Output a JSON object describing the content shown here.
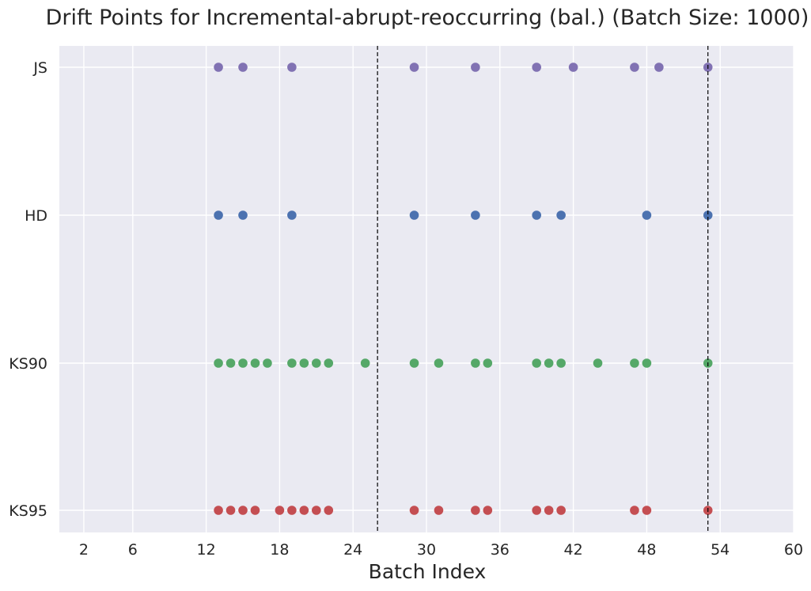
{
  "chart_data": {
    "type": "scatter",
    "title": "Drift Points for Incremental-abrupt-reoccurring (bal.) (Batch Size: 1000)",
    "xlabel": "Batch Index",
    "ylabel": "",
    "xlim": [
      0,
      60
    ],
    "x_ticks": [
      2,
      6,
      12,
      18,
      24,
      30,
      36,
      42,
      48,
      54,
      60
    ],
    "categories": [
      "JS",
      "HD",
      "KS90",
      "KS95"
    ],
    "vertical_lines": [
      26,
      53
    ],
    "grid": true,
    "background": "#eaeaf2",
    "series": [
      {
        "name": "JS",
        "color": "#8172b3",
        "x": [
          13,
          15,
          19,
          29,
          34,
          39,
          42,
          47,
          49,
          53
        ]
      },
      {
        "name": "HD",
        "color": "#4c72b0",
        "x": [
          13,
          15,
          19,
          29,
          34,
          39,
          41,
          48,
          53
        ]
      },
      {
        "name": "KS90",
        "color": "#55a868",
        "x": [
          13,
          14,
          15,
          16,
          17,
          19,
          20,
          21,
          22,
          25,
          29,
          31,
          34,
          35,
          39,
          40,
          41,
          44,
          47,
          48,
          53
        ]
      },
      {
        "name": "KS95",
        "color": "#c44e52",
        "x": [
          13,
          14,
          15,
          16,
          18,
          19,
          20,
          21,
          22,
          29,
          31,
          34,
          35,
          39,
          40,
          41,
          47,
          48,
          53
        ]
      }
    ]
  }
}
